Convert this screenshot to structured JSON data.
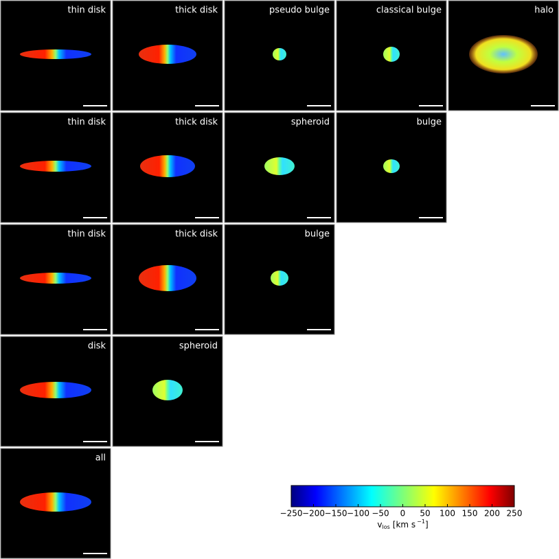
{
  "panels": [
    [
      "thin disk",
      "thick disk",
      "pseudo bulge",
      "classical bulge",
      "halo"
    ],
    [
      "thin disk",
      "thick disk",
      "spheroid",
      "bulge"
    ],
    [
      "thin disk",
      "thick disk",
      "bulge"
    ],
    [
      "disk",
      "spheroid"
    ],
    [
      "all"
    ]
  ],
  "chart_data": {
    "type": "colorbar",
    "colormap": "jet",
    "xlabel": {
      "symbol": "v",
      "subscript": "los",
      "unit": "[km s",
      "exponent": "−1",
      "close": "]"
    },
    "xlim": [
      -250,
      250
    ],
    "xticks": [
      {
        "value": -250,
        "label": "−250"
      },
      {
        "value": -200,
        "label": "−200"
      },
      {
        "value": -150,
        "label": "−150"
      },
      {
        "value": -100,
        "label": "−100"
      },
      {
        "value": -50,
        "label": "−50"
      },
      0,
      50,
      100,
      150,
      200,
      250
    ]
  }
}
